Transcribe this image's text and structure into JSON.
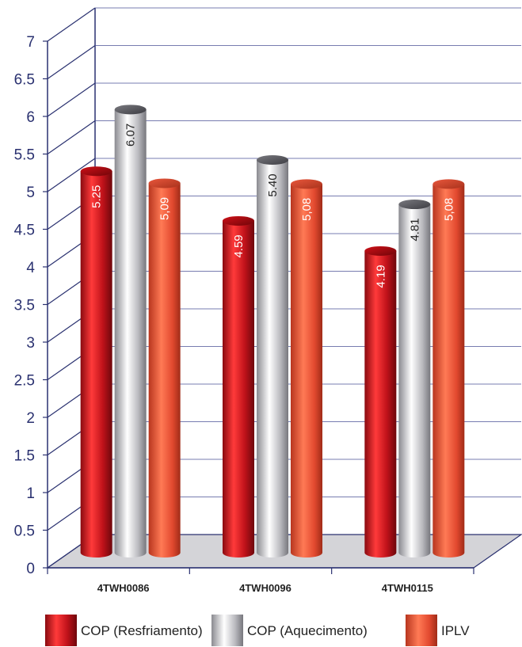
{
  "chart_data": {
    "type": "bar",
    "style": "3d-cylinder",
    "categories": [
      "4TWH0086",
      "4TWH0096",
      "4TWH0115"
    ],
    "series": [
      {
        "name": "COP (Resfriamento)",
        "values": [
          5.25,
          4.59,
          4.19
        ],
        "labels": [
          "5.25",
          "4.59",
          "4.19"
        ],
        "color": "#d3141c"
      },
      {
        "name": "COP (Aquecimento)",
        "values": [
          6.07,
          5.4,
          4.81
        ],
        "labels": [
          "6.07",
          "5.40",
          "4.81"
        ],
        "color": "#c9c9cc"
      },
      {
        "name": "IPLV",
        "values": [
          5.09,
          5.08,
          5.08
        ],
        "labels": [
          "5,09",
          "5,08",
          "5,08"
        ],
        "color": "#e8543a"
      }
    ],
    "yticks": [
      "0",
      "0.5",
      "1",
      "1.5",
      "2",
      "2.5",
      "3",
      "3.5",
      "4",
      "4.5",
      "5",
      "5.5",
      "6",
      "6.5",
      "7"
    ],
    "ylim": [
      0,
      7
    ],
    "grid": true,
    "legend_position": "bottom"
  },
  "colors": {
    "axis": "#2a3170",
    "grid": "#4a5096",
    "floor": "#d4d4d8"
  }
}
